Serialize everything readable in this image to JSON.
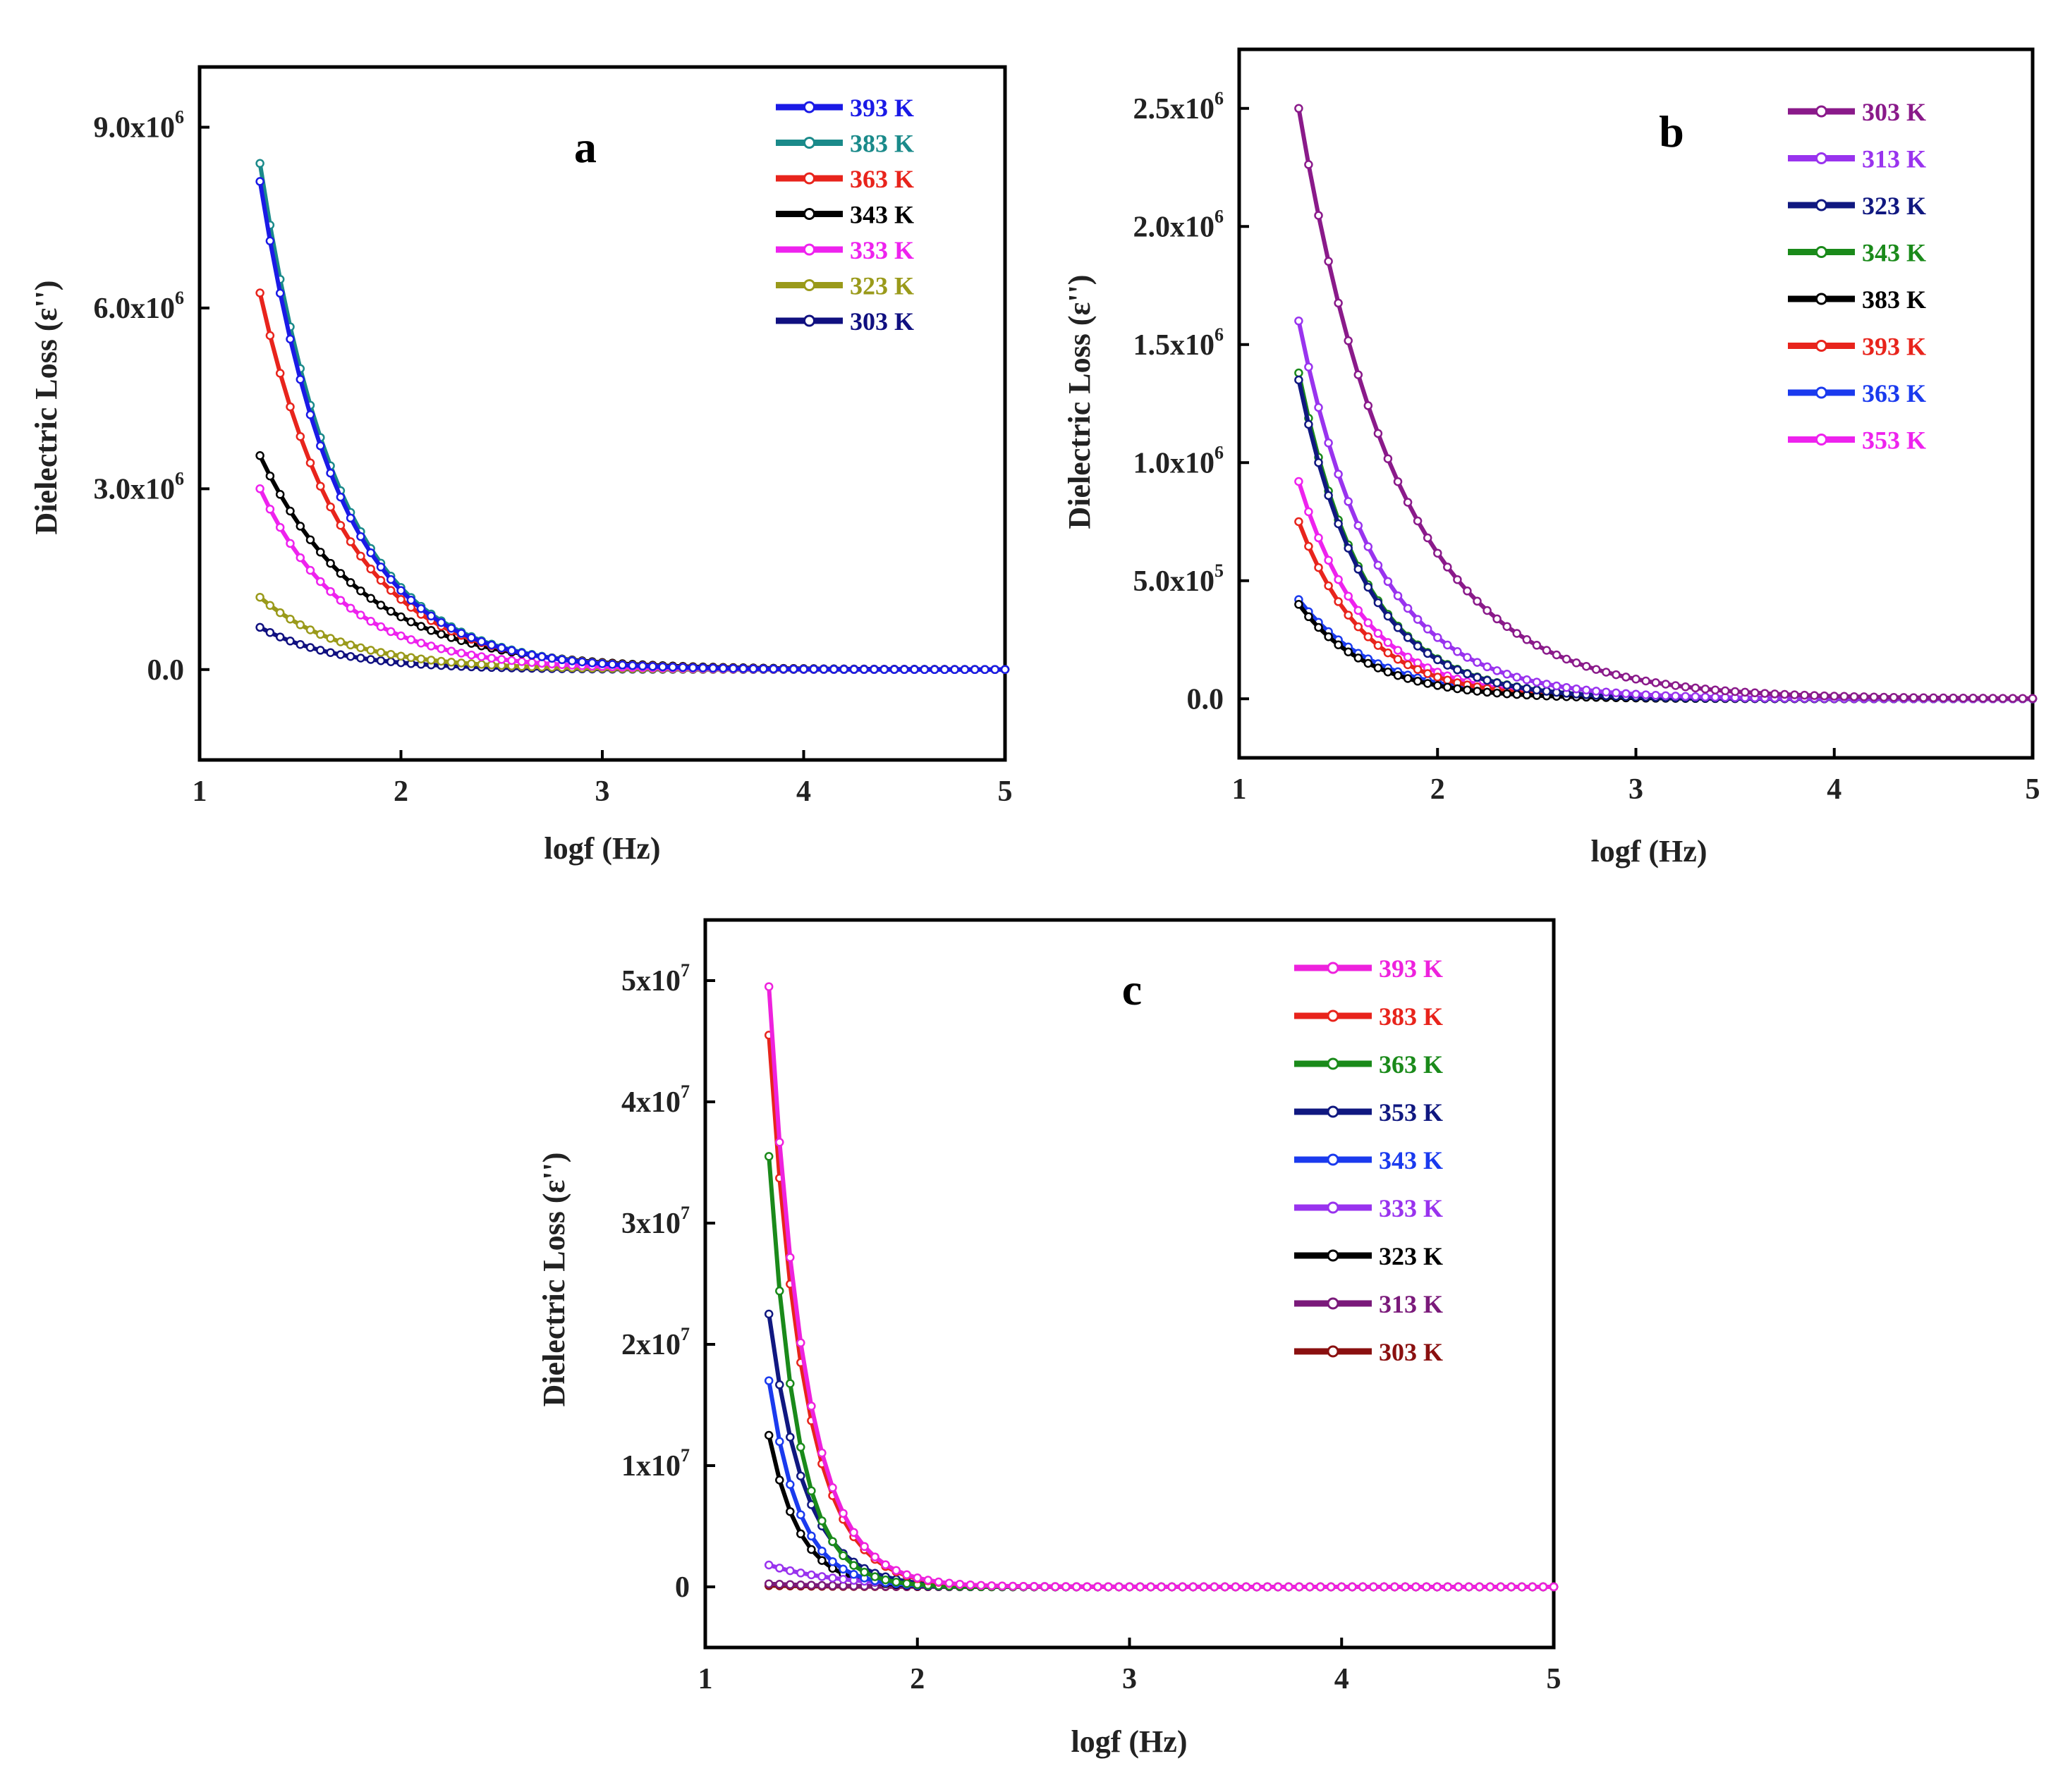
{
  "chart_data": [
    {
      "type": "line",
      "panel": "a",
      "xlabel": "logf (Hz)",
      "ylabel": "Dielectric Loss (ε'')",
      "xlim": [
        1,
        5
      ],
      "ylim": [
        -1500000,
        10000000
      ],
      "xticks": [
        1,
        2,
        3,
        4,
        5
      ],
      "xtick_labels": [
        "1",
        "2",
        "3",
        "4",
        "5"
      ],
      "yticks": [
        0,
        3000000,
        6000000,
        9000000
      ],
      "ytick_mantissas": [
        "0.0",
        "3.0x10",
        "6.0x10",
        "9.0x10"
      ],
      "ytick_exponents": [
        "",
        "6",
        "6",
        "6"
      ],
      "legend_position": "top-right",
      "series": [
        {
          "name": "393 K",
          "color": "#1a1ae6",
          "start": 8100000,
          "decay": 2.6,
          "logf_start": 1.3
        },
        {
          "name": "383 K",
          "color": "#1a8a8a",
          "start": 8400000,
          "decay": 2.6,
          "logf_start": 1.3
        },
        {
          "name": "363 K",
          "color": "#e8241c",
          "start": 6250000,
          "decay": 2.4,
          "logf_start": 1.3
        },
        {
          "name": "343 K",
          "color": "#000000",
          "start": 3550000,
          "decay": 2.0,
          "logf_start": 1.3
        },
        {
          "name": "333 K",
          "color": "#ee22ee",
          "start": 3000000,
          "decay": 2.4,
          "logf_start": 1.3
        },
        {
          "name": "323 K",
          "color": "#9a9a1a",
          "start": 1200000,
          "decay": 2.4,
          "logf_start": 1.3
        },
        {
          "name": "303 K",
          "color": "#101080",
          "start": 700000,
          "decay": 2.6,
          "logf_start": 1.3
        }
      ]
    },
    {
      "type": "line",
      "panel": "b",
      "xlabel": "logf (Hz)",
      "ylabel": "Dielectric Loss (ε'')",
      "xlim": [
        1,
        5
      ],
      "ylim": [
        -250000,
        2750000
      ],
      "xticks": [
        1,
        2,
        3,
        4,
        5
      ],
      "xtick_labels": [
        "1",
        "2",
        "3",
        "4",
        "5"
      ],
      "yticks": [
        0,
        500000,
        1000000,
        1500000,
        2000000,
        2500000
      ],
      "ytick_mantissas": [
        "0.0",
        "5.0x10",
        "1.0x10",
        "1.5x10",
        "2.0x10",
        "2.5x10"
      ],
      "ytick_exponents": [
        "",
        "5",
        "6",
        "6",
        "6",
        "6"
      ],
      "legend_position": "top-right",
      "series": [
        {
          "name": "303 K",
          "color": "#8a1a8a",
          "start": 2500000,
          "decay": 2.0,
          "logf_start": 1.3
        },
        {
          "name": "313 K",
          "color": "#9933ee",
          "start": 1600000,
          "decay": 2.6,
          "logf_start": 1.3
        },
        {
          "name": "323 K",
          "color": "#101880",
          "start": 1350000,
          "decay": 3.0,
          "logf_start": 1.3
        },
        {
          "name": "343 K",
          "color": "#1a8a1a",
          "start": 1380000,
          "decay": 3.0,
          "logf_start": 1.3
        },
        {
          "name": "383 K",
          "color": "#000000",
          "start": 400000,
          "decay": 2.8,
          "logf_start": 1.3
        },
        {
          "name": "393 K",
          "color": "#e8241c",
          "start": 750000,
          "decay": 3.0,
          "logf_start": 1.3
        },
        {
          "name": "363 K",
          "color": "#1a3aee",
          "start": 420000,
          "decay": 2.6,
          "logf_start": 1.3
        },
        {
          "name": "353 K",
          "color": "#ee22ee",
          "start": 920000,
          "decay": 3.0,
          "logf_start": 1.3
        }
      ]
    },
    {
      "type": "line",
      "panel": "c",
      "xlabel": "logf (Hz)",
      "ylabel": "Dielectric Loss (ε'')",
      "xlim": [
        1,
        5
      ],
      "ylim": [
        -5000000,
        55000000
      ],
      "xticks": [
        1,
        2,
        3,
        4,
        5
      ],
      "xtick_labels": [
        "1",
        "2",
        "3",
        "4",
        "5"
      ],
      "yticks": [
        0,
        10000000,
        20000000,
        30000000,
        40000000,
        50000000
      ],
      "ytick_mantissas": [
        "0",
        "1x10",
        "2x10",
        "3x10",
        "4x10",
        "5x10"
      ],
      "ytick_exponents": [
        "",
        "7",
        "7",
        "7",
        "7",
        "7"
      ],
      "legend_position": "top-right",
      "series": [
        {
          "name": "393 K",
          "color": "#ee22dd",
          "start": 49500000,
          "decay": 6.0,
          "logf_start": 1.3
        },
        {
          "name": "383 K",
          "color": "#e8241c",
          "start": 45500000,
          "decay": 6.0,
          "logf_start": 1.3
        },
        {
          "name": "363 K",
          "color": "#1a8a1a",
          "start": 35500000,
          "decay": 7.5,
          "logf_start": 1.3
        },
        {
          "name": "353 K",
          "color": "#101880",
          "start": 22500000,
          "decay": 6.0,
          "logf_start": 1.3
        },
        {
          "name": "343 K",
          "color": "#1a3aee",
          "start": 17000000,
          "decay": 7.0,
          "logf_start": 1.3
        },
        {
          "name": "333 K",
          "color": "#9933ee",
          "start": 1800000,
          "decay": 3.0,
          "logf_start": 1.3
        },
        {
          "name": "323 K",
          "color": "#000000",
          "start": 12500000,
          "decay": 7.0,
          "logf_start": 1.3
        },
        {
          "name": "313 K",
          "color": "#7a1a7a",
          "start": 250000,
          "decay": 3.0,
          "logf_start": 1.3
        },
        {
          "name": "303 K",
          "color": "#8a1010",
          "start": 100000,
          "decay": 3.0,
          "logf_start": 1.3
        }
      ]
    }
  ]
}
